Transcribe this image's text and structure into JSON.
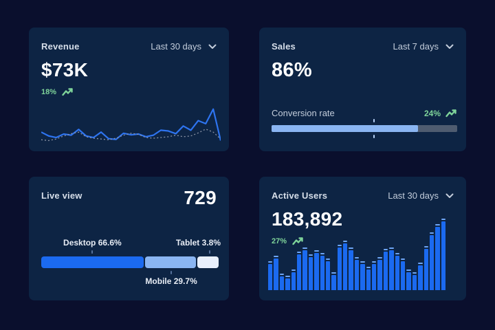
{
  "theme": {
    "page_bg": "#0a0f2d",
    "card_bg": "#0d2444",
    "title_color": "#d6dee9",
    "value_color": "#ffffff",
    "muted_color": "#c3cddb",
    "green": "#7fd49a",
    "line_blue": "#2e74f0",
    "bar_blue": "#1b6af0",
    "bar_cap_blue": "#6ea6f7",
    "light_blue": "#8ab5f2",
    "pale_blue": "#e8effc",
    "track_gray": "#4f5c70",
    "dash_gray": "#8d96a8",
    "tick_color": "#56719c"
  },
  "cards": {
    "revenue": {
      "title": "Revenue",
      "range_label": "Last 30 days",
      "value": "$73K",
      "trend": "18%"
    },
    "sales": {
      "title": "Sales",
      "range_label": "Last 7 days",
      "value": "86%",
      "metric_label": "Conversion rate",
      "metric_trend": "24%",
      "progress_fill_pct": 79,
      "marker_pct": 55
    },
    "live_view": {
      "title": "Live view",
      "value": "729",
      "segments": [
        {
          "label": "Desktop",
          "pct": "66.6%",
          "text": "Desktop 66.6%",
          "display_pct": 57,
          "color": "bar_blue",
          "label_side": "top"
        },
        {
          "label": "Mobile",
          "pct": "29.7%",
          "text": "Mobile 29.7%",
          "display_pct": 28.5,
          "color": "light_blue",
          "label_side": "bottom"
        },
        {
          "label": "Tablet",
          "pct": "3.8%",
          "text": "Tablet 3.8%",
          "display_pct": 12,
          "color": "pale_blue",
          "label_side": "top"
        }
      ]
    },
    "active_users": {
      "title": "Active Users",
      "range_label": "Last 30 days",
      "value": "183,892",
      "trend": "27%"
    }
  },
  "chart_data": [
    {
      "type": "line",
      "title": "Revenue trend (Last 30 days)",
      "legend": "none",
      "grid": false,
      "axes": "hidden",
      "ylim": [
        0,
        100
      ],
      "series": [
        {
          "name": "current period",
          "style": "solid",
          "color_key": "line_blue",
          "values": [
            30,
            20,
            16,
            25,
            22,
            37,
            20,
            16,
            30,
            13,
            11,
            27,
            23,
            25,
            18,
            22,
            35,
            33,
            26,
            46,
            35,
            60,
            52,
            90,
            8
          ]
        },
        {
          "name": "previous period",
          "style": "dashed",
          "color_key": "dash_gray",
          "values": [
            10,
            8,
            12,
            20,
            26,
            30,
            18,
            14,
            12,
            10,
            14,
            22,
            27,
            24,
            16,
            14,
            16,
            18,
            22,
            18,
            20,
            28,
            38,
            30,
            12
          ]
        }
      ]
    },
    {
      "type": "progress",
      "title": "Conversion rate",
      "value_label": "24%",
      "fill_pct": 79,
      "marker_pct": 55
    },
    {
      "type": "stacked-bar",
      "title": "Live view device share",
      "segments": [
        {
          "label": "Desktop",
          "value": 66.6
        },
        {
          "label": "Mobile",
          "value": 29.7
        },
        {
          "label": "Tablet",
          "value": 3.8
        }
      ]
    },
    {
      "type": "bar",
      "title": "Active Users (Last 30 days)",
      "grid": false,
      "axes": "hidden",
      "ylim": [
        0,
        100
      ],
      "values": [
        38,
        46,
        20,
        17,
        26,
        52,
        58,
        48,
        54,
        50,
        42,
        22,
        62,
        68,
        58,
        44,
        38,
        30,
        38,
        44,
        56,
        58,
        50,
        42,
        26,
        22,
        36,
        60,
        80,
        92,
        100
      ]
    }
  ]
}
